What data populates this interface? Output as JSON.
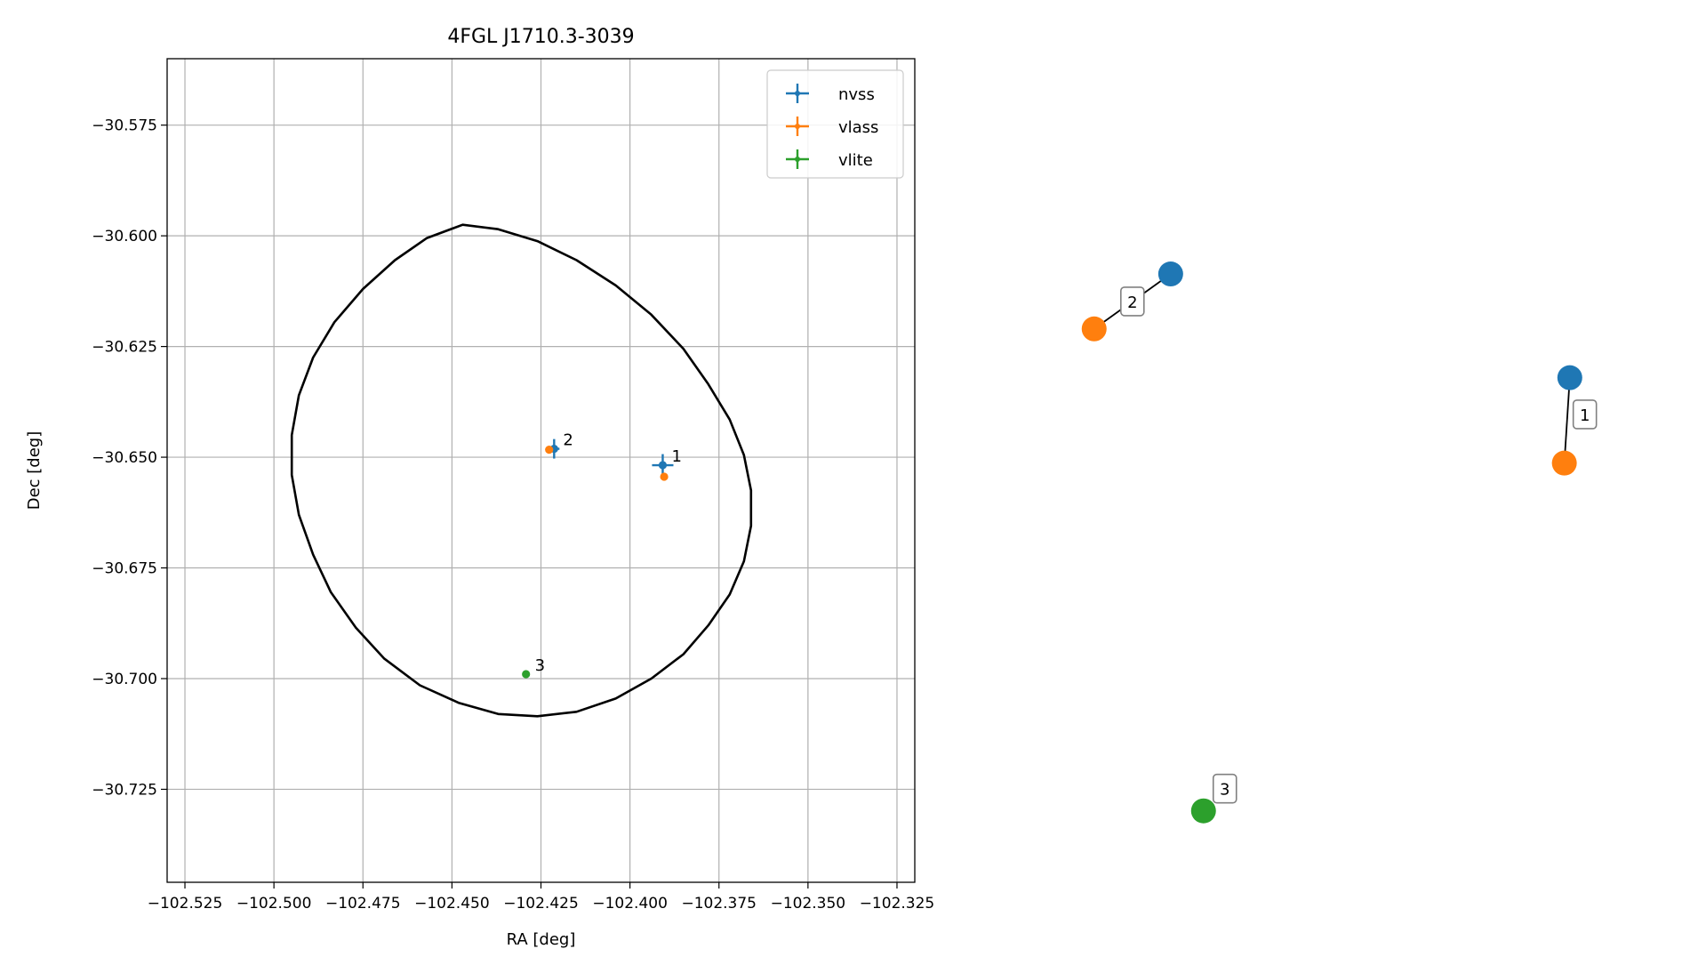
{
  "chart_data": [
    {
      "type": "scatter",
      "title": "4FGL J1710.3-3039",
      "xlabel": "RA [deg]",
      "ylabel": "Dec [deg]",
      "xlim": [
        -102.53,
        -102.32
      ],
      "ylim": [
        -30.746,
        -30.56
      ],
      "xticks": [
        -102.525,
        -102.5,
        -102.475,
        -102.45,
        -102.425,
        -102.4,
        -102.375,
        -102.35,
        -102.325
      ],
      "xtick_labels": [
        "−102.525",
        "−102.500",
        "−102.475",
        "−102.450",
        "−102.425",
        "−102.400",
        "−102.375",
        "−102.350",
        "−102.325"
      ],
      "yticks": [
        -30.575,
        -30.6,
        -30.625,
        -30.65,
        -30.675,
        -30.7,
        -30.725
      ],
      "ytick_labels": [
        "−30.575",
        "−30.600",
        "−30.625",
        "−30.650",
        "−30.675",
        "−30.700",
        "−30.725"
      ],
      "grid": true,
      "legend_position": "top-right",
      "series": [
        {
          "name": "nvss",
          "color": "#1f77b4",
          "points": [
            {
              "x": -102.3908,
              "y": -30.6518,
              "xerr": 0.003,
              "yerr": 0.0025,
              "label": "1"
            },
            {
              "x": -102.4213,
              "y": -30.6481,
              "xerr": 0.0015,
              "yerr": 0.0022,
              "label": "2"
            }
          ]
        },
        {
          "name": "vlass",
          "color": "#ff7f0e",
          "points": [
            {
              "x": -102.3904,
              "y": -30.6544,
              "xerr": 0.0003,
              "yerr": 0.0003,
              "label": ""
            },
            {
              "x": -102.4227,
              "y": -30.6483,
              "xerr": 0.0003,
              "yerr": 0.0003,
              "label": ""
            }
          ]
        },
        {
          "name": "vlite",
          "color": "#2ca02c",
          "points": [
            {
              "x": -102.4292,
              "y": -30.699,
              "xerr": 0.0003,
              "yerr": 0.0003,
              "label": "3"
            }
          ]
        }
      ],
      "ellipse": {
        "color": "#000000",
        "points": [
          [
            -102.447,
            -30.5975
          ],
          [
            -102.437,
            -30.5985
          ],
          [
            -102.426,
            -30.6012
          ],
          [
            -102.415,
            -30.6055
          ],
          [
            -102.404,
            -30.6112
          ],
          [
            -102.394,
            -30.6178
          ],
          [
            -102.385,
            -30.6255
          ],
          [
            -102.378,
            -30.6335
          ],
          [
            -102.372,
            -30.6415
          ],
          [
            -102.368,
            -30.6495
          ],
          [
            -102.366,
            -30.6575
          ],
          [
            -102.366,
            -30.6655
          ],
          [
            -102.368,
            -30.6735
          ],
          [
            -102.372,
            -30.681
          ],
          [
            -102.378,
            -30.688
          ],
          [
            -102.385,
            -30.6945
          ],
          [
            -102.394,
            -30.7
          ],
          [
            -102.404,
            -30.7045
          ],
          [
            -102.415,
            -30.7075
          ],
          [
            -102.426,
            -30.7085
          ],
          [
            -102.437,
            -30.708
          ],
          [
            -102.448,
            -30.7055
          ],
          [
            -102.459,
            -30.7015
          ],
          [
            -102.469,
            -30.6955
          ],
          [
            -102.477,
            -30.6885
          ],
          [
            -102.484,
            -30.6805
          ],
          [
            -102.489,
            -30.672
          ],
          [
            -102.493,
            -30.663
          ],
          [
            -102.495,
            -30.654
          ],
          [
            -102.495,
            -30.645
          ],
          [
            -102.493,
            -30.636
          ],
          [
            -102.489,
            -30.6275
          ],
          [
            -102.483,
            -30.6195
          ],
          [
            -102.475,
            -30.612
          ],
          [
            -102.466,
            -30.6055
          ],
          [
            -102.457,
            -30.6005
          ]
        ]
      }
    },
    {
      "type": "network",
      "nodes": [
        {
          "id": "nvss-2",
          "color": "#1f77b4",
          "x": 0.19,
          "y": 0.07
        },
        {
          "id": "vlass-2",
          "color": "#ff7f0e",
          "x": 0.05,
          "y": 0.16
        },
        {
          "id": "nvss-1",
          "color": "#1f77b4",
          "x": 0.92,
          "y": 0.24
        },
        {
          "id": "vlass-1",
          "color": "#ff7f0e",
          "x": 0.91,
          "y": 0.38
        },
        {
          "id": "vlite-3",
          "color": "#2ca02c",
          "x": 0.25,
          "y": 0.95
        }
      ],
      "edges": [
        {
          "source": "nvss-2",
          "target": "vlass-2",
          "label": "2"
        },
        {
          "source": "nvss-1",
          "target": "vlass-1",
          "label": "1"
        }
      ],
      "standalone_labels": [
        {
          "node": "vlite-3",
          "label": "3"
        }
      ]
    }
  ]
}
